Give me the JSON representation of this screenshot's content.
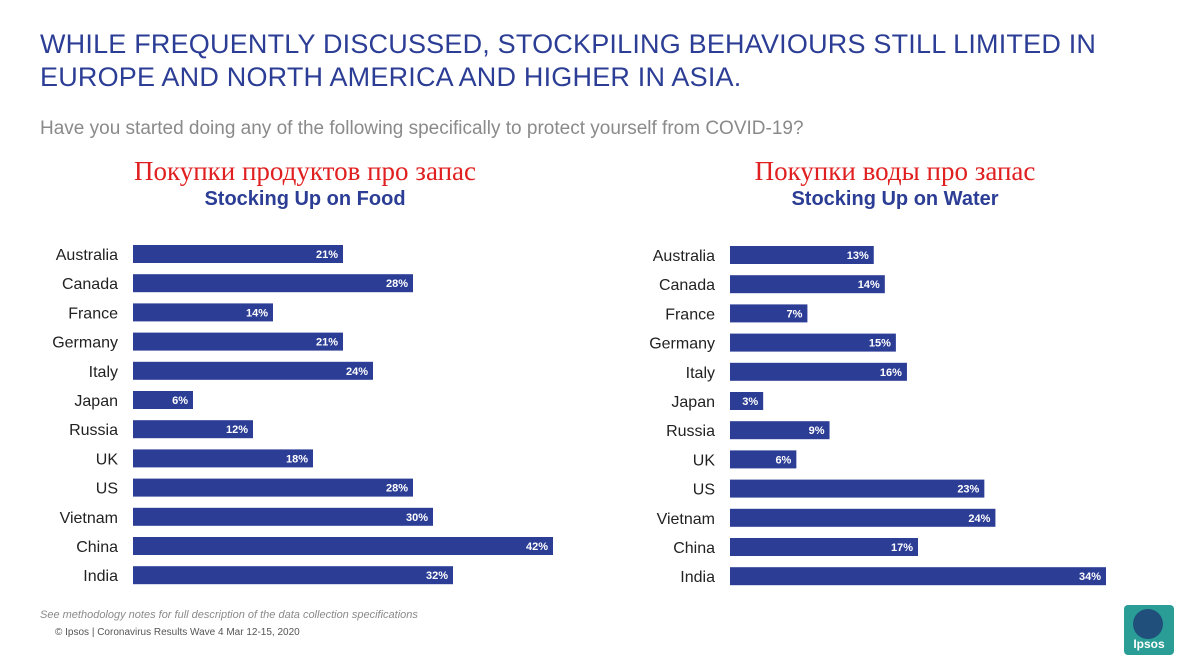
{
  "title": "WHILE FREQUENTLY DISCUSSED, STOCKPILING BEHAVIOURS STILL LIMITED IN EUROPE AND NORTH AMERICA AND HIGHER IN ASIA.",
  "subtitle": "Have you started doing any of the following specifically to protect yourself from COVID-19?",
  "footer": {
    "note": "See methodology notes for full description of the data collection specifications",
    "copyright": "© Ipsos | Coronavirus Results Wave 4 Mar 12-15, 2020"
  },
  "logo": {
    "text": "Ipsos",
    "color": "#2a9d97"
  },
  "colors": {
    "bar": "#2b3d95",
    "title": "#2b3d95",
    "ru_title": "#e02020"
  },
  "chart_data": [
    {
      "type": "bar",
      "orientation": "horizontal",
      "title_ru": "Покупки продуктов про запас",
      "title": "Stocking Up on Food",
      "categories": [
        "Australia",
        "Canada",
        "France",
        "Germany",
        "Italy",
        "Japan",
        "Russia",
        "UK",
        "US",
        "Vietnam",
        "China",
        "India"
      ],
      "values": [
        21,
        28,
        14,
        21,
        24,
        6,
        12,
        18,
        28,
        30,
        42,
        32
      ],
      "value_format": "%",
      "xlim": [
        0,
        42
      ],
      "grid": false
    },
    {
      "type": "bar",
      "orientation": "horizontal",
      "title_ru": "Покупки воды про запас",
      "title": "Stocking Up on Water",
      "categories": [
        "Australia",
        "Canada",
        "France",
        "Germany",
        "Italy",
        "Japan",
        "Russia",
        "UK",
        "US",
        "Vietnam",
        "China",
        "India"
      ],
      "values": [
        13,
        14,
        7,
        15,
        16,
        3,
        9,
        6,
        23,
        24,
        17,
        34
      ],
      "value_format": "%",
      "xlim": [
        0,
        34
      ],
      "grid": false
    }
  ]
}
